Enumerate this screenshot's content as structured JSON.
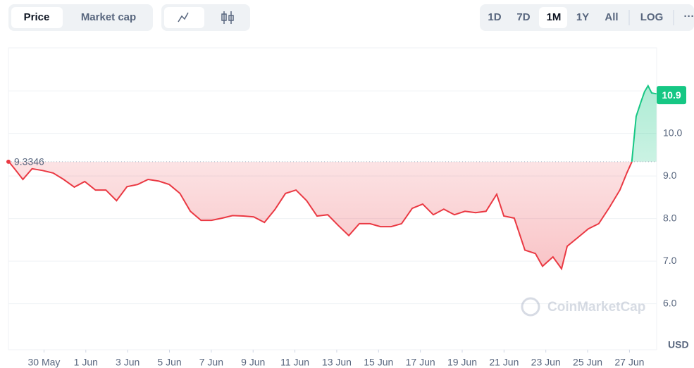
{
  "toolbar": {
    "type_tabs": [
      "Price",
      "Market cap"
    ],
    "ranges": [
      "1D",
      "7D",
      "1M",
      "1Y",
      "All",
      "LOG"
    ],
    "more": "···"
  },
  "chart_data": {
    "type": "line",
    "x": [
      -1.68,
      -1.41,
      -1.01,
      -0.57,
      -0.07,
      0.44,
      0.94,
      1.45,
      1.95,
      2.46,
      2.96,
      3.47,
      3.97,
      4.48,
      4.98,
      5.49,
      5.99,
      6.5,
      7.0,
      7.51,
      8.01,
      8.52,
      9.02,
      9.53,
      10.03,
      10.54,
      11.04,
      11.55,
      12.05,
      12.56,
      13.06,
      13.57,
      14.07,
      14.58,
      15.08,
      15.59,
      16.09,
      16.6,
      17.1,
      17.61,
      18.11,
      18.62,
      19.12,
      19.63,
      20.13,
      20.64,
      21.14,
      21.65,
      21.99,
      22.49,
      23.0,
      23.5,
      23.84,
      24.34,
      24.75,
      25.02,
      25.52,
      26.03,
      26.53,
      27.04,
      27.54,
      27.88,
      28.11,
      28.32,
      28.55,
      28.72,
      28.89,
      29.06,
      29.29
    ],
    "series": [
      {
        "name": "Price",
        "up_color": "#16c784",
        "down_color": "#ea3943",
        "values": [
          9.3346,
          9.17,
          8.92,
          9.17,
          9.13,
          9.07,
          8.92,
          8.74,
          8.87,
          8.67,
          8.67,
          8.42,
          8.75,
          8.8,
          8.92,
          8.88,
          8.8,
          8.59,
          8.17,
          7.96,
          7.96,
          8.01,
          8.07,
          8.06,
          8.04,
          7.91,
          8.21,
          8.59,
          8.67,
          8.42,
          8.06,
          8.09,
          7.84,
          7.6,
          7.88,
          7.88,
          7.81,
          7.81,
          7.88,
          8.24,
          8.34,
          8.09,
          8.22,
          8.09,
          8.17,
          8.14,
          8.17,
          8.57,
          8.06,
          8.01,
          7.26,
          7.18,
          6.88,
          7.1,
          6.82,
          7.35,
          7.55,
          7.76,
          7.88,
          8.26,
          8.67,
          9.08,
          9.33,
          10.4,
          10.74,
          10.98,
          11.12,
          10.95,
          10.93
        ]
      }
    ],
    "baseline": 9.3346,
    "current_price": 10.9,
    "xlim": [
      -1.7,
      29.3
    ],
    "xticks": [
      {
        "value": 0,
        "label": "30 May"
      },
      {
        "value": 2,
        "label": "1 Jun"
      },
      {
        "value": 4,
        "label": "3 Jun"
      },
      {
        "value": 6,
        "label": "5 Jun"
      },
      {
        "value": 8,
        "label": "7 Jun"
      },
      {
        "value": 10,
        "label": "9 Jun"
      },
      {
        "value": 12,
        "label": "11 Jun"
      },
      {
        "value": 14,
        "label": "13 Jun"
      },
      {
        "value": 16,
        "label": "15 Jun"
      },
      {
        "value": 18,
        "label": "17 Jun"
      },
      {
        "value": 20,
        "label": "19 Jun"
      },
      {
        "value": 22,
        "label": "21 Jun"
      },
      {
        "value": 24,
        "label": "23 Jun"
      },
      {
        "value": 26,
        "label": "25 Jun"
      },
      {
        "value": 28,
        "label": "27 Jun"
      }
    ],
    "ylim": [
      4.92,
      12.01
    ],
    "yticks": [
      {
        "value": 6,
        "label": "6.0"
      },
      {
        "value": 7,
        "label": "7.0"
      },
      {
        "value": 8,
        "label": "8.0"
      },
      {
        "value": 9,
        "label": "9.0"
      },
      {
        "value": 10,
        "label": "10.0"
      },
      {
        "value": 11,
        "label": ""
      }
    ],
    "y_unit": "USD",
    "watermark": "CoinMarketCap",
    "grid": true
  }
}
